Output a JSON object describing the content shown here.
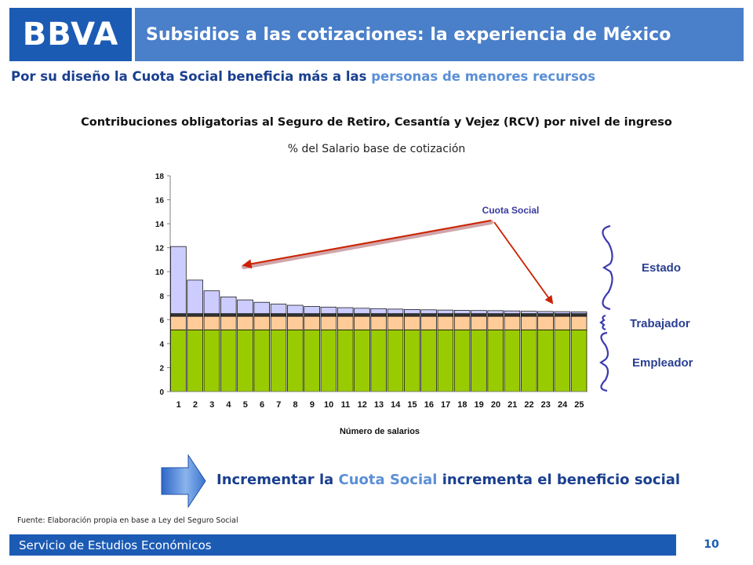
{
  "header": {
    "logo": "BBVA",
    "title": "Subsidios a las cotizaciones: la experiencia de México"
  },
  "subtitle": {
    "part1": "Por su diseño la Cuota Social beneficia más a las ",
    "highlight": "personas de menores recursos"
  },
  "chart_data": {
    "type": "bar",
    "stacked": true,
    "title": "Contribuciones obligatorias al Seguro de Retiro, Cesantía y Vejez (RCV) por nivel de ingreso",
    "subtitle": "% del Salario base de cotización",
    "xlabel": "Número de salarios",
    "ylabel": "",
    "ylim": [
      0,
      18
    ],
    "yticks": [
      0,
      2,
      4,
      6,
      8,
      10,
      12,
      14,
      16,
      18
    ],
    "categories": [
      "1",
      "2",
      "3",
      "4",
      "5",
      "6",
      "7",
      "8",
      "9",
      "10",
      "11",
      "12",
      "13",
      "14",
      "15",
      "16",
      "17",
      "18",
      "19",
      "20",
      "21",
      "22",
      "23",
      "24",
      "25"
    ],
    "series": [
      {
        "name": "Empleador",
        "color": "#99cc00",
        "values": [
          5.15,
          5.15,
          5.15,
          5.15,
          5.15,
          5.15,
          5.15,
          5.15,
          5.15,
          5.15,
          5.15,
          5.15,
          5.15,
          5.15,
          5.15,
          5.15,
          5.15,
          5.15,
          5.15,
          5.15,
          5.15,
          5.15,
          5.15,
          5.15,
          5.15
        ]
      },
      {
        "name": "Trabajador",
        "color": "#ffcc99",
        "values": [
          1.125,
          1.125,
          1.125,
          1.125,
          1.125,
          1.125,
          1.125,
          1.125,
          1.125,
          1.125,
          1.125,
          1.125,
          1.125,
          1.125,
          1.125,
          1.125,
          1.125,
          1.125,
          1.125,
          1.125,
          1.125,
          1.125,
          1.125,
          1.125,
          1.125
        ]
      },
      {
        "name": "Estado",
        "color": "#333333",
        "values": [
          0.225,
          0.225,
          0.225,
          0.225,
          0.225,
          0.225,
          0.225,
          0.225,
          0.225,
          0.225,
          0.225,
          0.225,
          0.225,
          0.225,
          0.225,
          0.225,
          0.225,
          0.225,
          0.225,
          0.225,
          0.225,
          0.225,
          0.225,
          0.225,
          0.225
        ]
      },
      {
        "name": "Cuota Social",
        "color": "#ccccff",
        "values": [
          5.6,
          2.8,
          1.9,
          1.4,
          1.15,
          0.95,
          0.8,
          0.7,
          0.6,
          0.55,
          0.5,
          0.45,
          0.42,
          0.38,
          0.35,
          0.32,
          0.3,
          0.28,
          0.26,
          0.25,
          0.23,
          0.2,
          0.18,
          0.17,
          0.15
        ]
      }
    ],
    "annotation": "Cuota Social",
    "brace_labels": [
      "Estado",
      "Trabajador",
      "Empleador"
    ],
    "grid": false,
    "legend": "none"
  },
  "bottom": {
    "part1": "Incrementar la ",
    "highlight": "Cuota Social",
    "part2": " incrementa el beneficio social"
  },
  "source": "Fuente: Elaboración propia en base a Ley del Seguro Social",
  "footer": {
    "text": "Servicio de Estudios Económicos",
    "page": "10"
  }
}
